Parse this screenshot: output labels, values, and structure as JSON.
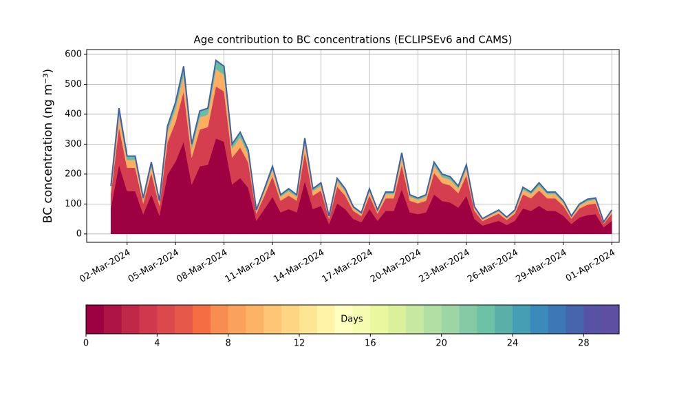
{
  "chart_data": {
    "type": "stacked_area",
    "title": "Age contribution to BC concentrations (ECLIPSEv6 and CAMS)",
    "ylabel": "BC concentration (ng m⁻³)",
    "x": [
      "2024-03-01 00:00",
      "2024-03-01 12:00",
      "2024-03-02 00:00",
      "2024-03-02 12:00",
      "2024-03-03 00:00",
      "2024-03-03 12:00",
      "2024-03-04 00:00",
      "2024-03-04 12:00",
      "2024-03-05 00:00",
      "2024-03-05 12:00",
      "2024-03-06 00:00",
      "2024-03-06 12:00",
      "2024-03-07 00:00",
      "2024-03-07 12:00",
      "2024-03-08 00:00",
      "2024-03-08 12:00",
      "2024-03-09 00:00",
      "2024-03-09 12:00",
      "2024-03-10 00:00",
      "2024-03-10 12:00",
      "2024-03-11 00:00",
      "2024-03-11 12:00",
      "2024-03-12 00:00",
      "2024-03-12 12:00",
      "2024-03-13 00:00",
      "2024-03-13 12:00",
      "2024-03-14 00:00",
      "2024-03-14 12:00",
      "2024-03-15 00:00",
      "2024-03-15 12:00",
      "2024-03-16 00:00",
      "2024-03-16 12:00",
      "2024-03-17 00:00",
      "2024-03-17 12:00",
      "2024-03-18 00:00",
      "2024-03-18 12:00",
      "2024-03-19 00:00",
      "2024-03-19 12:00",
      "2024-03-20 00:00",
      "2024-03-20 12:00",
      "2024-03-21 00:00",
      "2024-03-21 12:00",
      "2024-03-22 00:00",
      "2024-03-22 12:00",
      "2024-03-23 00:00",
      "2024-03-23 12:00",
      "2024-03-24 00:00",
      "2024-03-24 12:00",
      "2024-03-25 00:00",
      "2024-03-25 12:00",
      "2024-03-26 00:00",
      "2024-03-26 12:00",
      "2024-03-27 00:00",
      "2024-03-27 12:00",
      "2024-03-28 00:00",
      "2024-03-28 12:00",
      "2024-03-29 00:00",
      "2024-03-29 12:00",
      "2024-03-30 00:00",
      "2024-03-30 12:00",
      "2024-03-31 00:00",
      "2024-03-31 12:00",
      "2024-04-01 00:00"
    ],
    "series": [
      {
        "color": "#9e0142",
        "values": [
          88,
          231,
          143,
          143,
          66,
          132,
          61,
          198,
          242,
          308,
          165,
          226,
          231,
          319,
          308,
          165,
          187,
          154,
          44,
          83,
          124,
          72,
          83,
          72,
          176,
          83,
          94,
          33,
          102,
          83,
          50,
          39,
          83,
          44,
          77,
          77,
          149,
          72,
          66,
          72,
          132,
          110,
          105,
          88,
          127,
          50,
          28,
          36,
          44,
          30,
          44,
          85,
          77,
          94,
          77,
          77,
          61,
          33,
          55,
          63,
          66,
          22,
          44
        ]
      },
      {
        "color": "#d53e4f",
        "values": [
          48,
          126,
          78,
          78,
          36,
          72,
          33,
          108,
          132,
          168,
          90,
          123,
          126,
          174,
          168,
          90,
          102,
          84,
          24,
          45,
          68,
          39,
          45,
          39,
          96,
          45,
          51,
          18,
          56,
          45,
          27,
          21,
          45,
          24,
          42,
          42,
          81,
          39,
          36,
          39,
          72,
          60,
          57,
          48,
          69,
          27,
          15,
          20,
          24,
          17,
          24,
          47,
          42,
          51,
          42,
          42,
          33,
          18,
          30,
          35,
          36,
          12,
          24
        ]
      },
      {
        "color": "#fdae61",
        "values": [
          16,
          42,
          26,
          26,
          12,
          24,
          11,
          36,
          44,
          56,
          30,
          41,
          42,
          58,
          56,
          30,
          34,
          28,
          8,
          15,
          23,
          13,
          15,
          13,
          32,
          15,
          17,
          6,
          19,
          15,
          9,
          7,
          15,
          8,
          14,
          14,
          27,
          13,
          12,
          13,
          24,
          20,
          19,
          16,
          23,
          9,
          5,
          7,
          8,
          6,
          8,
          16,
          14,
          17,
          14,
          14,
          11,
          6,
          10,
          12,
          12,
          4,
          8
        ]
      },
      {
        "color": "#66bda6",
        "values": [
          8,
          21,
          13,
          13,
          6,
          12,
          6,
          18,
          22,
          28,
          15,
          21,
          21,
          29,
          28,
          15,
          17,
          14,
          4,
          8,
          11,
          7,
          8,
          7,
          16,
          8,
          9,
          3,
          9,
          8,
          5,
          4,
          8,
          4,
          7,
          7,
          14,
          7,
          6,
          7,
          12,
          10,
          10,
          8,
          12,
          5,
          3,
          3,
          4,
          3,
          4,
          8,
          7,
          9,
          7,
          7,
          6,
          3,
          5,
          6,
          6,
          2,
          4
        ]
      }
    ],
    "line_color": "#4060a8",
    "xlim": [
      "2024-02-28 12:00",
      "2024-04-01 11:00"
    ],
    "xticks": [
      {
        "value": "2024-03-02",
        "label": "02-Mar-2024"
      },
      {
        "value": "2024-03-05",
        "label": "05-Mar-2024"
      },
      {
        "value": "2024-03-08",
        "label": "08-Mar-2024"
      },
      {
        "value": "2024-03-11",
        "label": "11-Mar-2024"
      },
      {
        "value": "2024-03-14",
        "label": "14-Mar-2024"
      },
      {
        "value": "2024-03-17",
        "label": "17-Mar-2024"
      },
      {
        "value": "2024-03-20",
        "label": "20-Mar-2024"
      },
      {
        "value": "2024-03-23",
        "label": "23-Mar-2024"
      },
      {
        "value": "2024-03-26",
        "label": "26-Mar-2024"
      },
      {
        "value": "2024-03-29",
        "label": "29-Mar-2024"
      },
      {
        "value": "2024-04-01",
        "label": "01-Apr-2024"
      }
    ],
    "ylim": [
      -28,
      616
    ],
    "yticks": [
      0,
      100,
      200,
      300,
      400,
      500,
      600
    ],
    "grid": true,
    "colorbar": {
      "label": "Days",
      "lim": [
        0,
        30
      ],
      "ticks": [
        0,
        4,
        8,
        12,
        16,
        20,
        24,
        28
      ],
      "colors": [
        "#9e0142",
        "#af1446",
        "#c0284a",
        "#d0384e",
        "#dc494c",
        "#e65848",
        "#f46d43",
        "#f88d52",
        "#faa15b",
        "#fdb365",
        "#fdc574",
        "#fed683",
        "#fee593",
        "#fef3a6",
        "#ffffbf",
        "#f6fbb2",
        "#eaf79e",
        "#dcf09b",
        "#c7e8a0",
        "#b2dfa3",
        "#9dd5a4",
        "#84cba5",
        "#6dc1a5",
        "#5aafa9",
        "#459eb3",
        "#3a8bbb",
        "#3d78b5",
        "#4765ac",
        "#5752a3",
        "#5e4fa2"
      ]
    }
  }
}
